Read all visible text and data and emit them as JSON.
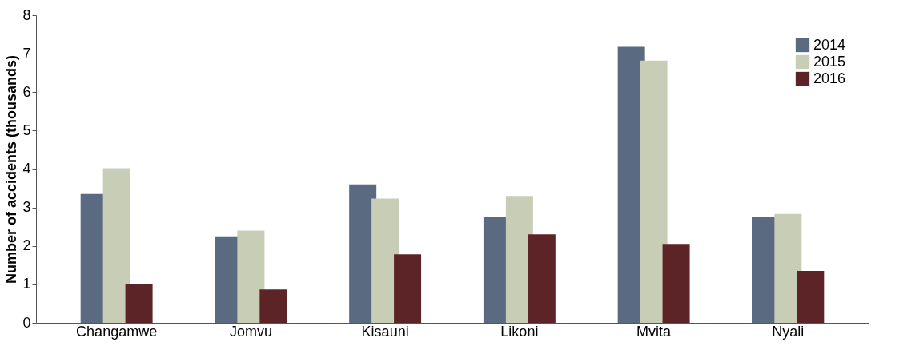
{
  "chart_data": {
    "type": "bar",
    "ylabel": "Number of accidents (thousands)",
    "categories": [
      "Changamwe",
      "Jomvu",
      "Kisauni",
      "Likoni",
      "Mvita",
      "Nyali"
    ],
    "series": [
      {
        "name": "2014",
        "color": "#5a6a80",
        "values": [
          3.35,
          2.25,
          3.6,
          2.76,
          7.18,
          2.76
        ]
      },
      {
        "name": "2015",
        "color": "#c8cdb6",
        "values": [
          4.02,
          2.4,
          3.23,
          3.3,
          6.82,
          2.83
        ]
      },
      {
        "name": "2016",
        "color": "#5c2427",
        "values": [
          1.0,
          0.87,
          1.78,
          2.3,
          2.05,
          1.35
        ]
      }
    ],
    "ylim": [
      0,
      8
    ],
    "yticks": [
      0,
      1,
      2,
      3,
      4,
      5,
      6,
      7,
      8
    ],
    "grid": false,
    "legend": "top right"
  }
}
